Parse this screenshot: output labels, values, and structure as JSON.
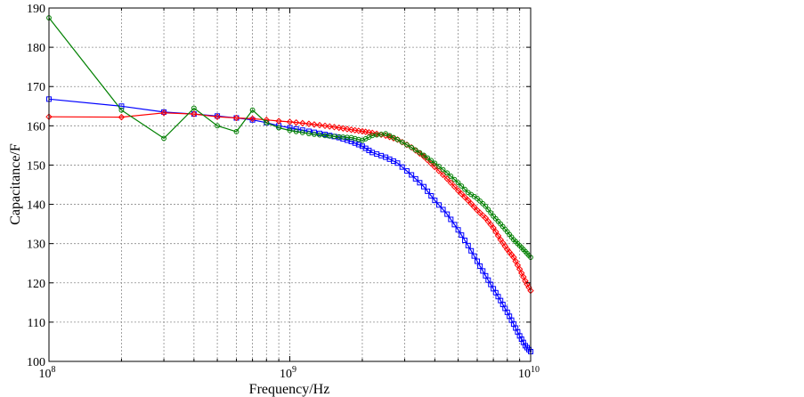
{
  "chart_data": {
    "type": "line",
    "title": "",
    "xlabel": "Frequency/Hz",
    "ylabel": "Capacitance/F",
    "xscale": "log",
    "xlim": [
      100000000,
      10000000000
    ],
    "ylim": [
      100,
      190
    ],
    "grid": true,
    "legend": "none",
    "x_ticks": [
      {
        "value": 100000000,
        "base": "10",
        "exp": "8"
      },
      {
        "value": 1000000000,
        "base": "10",
        "exp": "9"
      },
      {
        "value": 10000000000,
        "base": "10",
        "exp": "10"
      }
    ],
    "y_ticks": [
      100,
      110,
      120,
      130,
      140,
      150,
      160,
      170,
      180,
      190
    ],
    "series": [
      {
        "color": "#0000ff",
        "marker": "square",
        "x": [
          100000000.0,
          200000000.0,
          300000000.0,
          400000000.0,
          500000000.0,
          600000000.0,
          700000000.0,
          800000000.0,
          900000000.0,
          1000000000.0,
          1200000000.0,
          1400000000.0,
          1600000000.0,
          1800000000.0,
          2000000000.0,
          2200000000.0,
          2500000000.0,
          2800000000.0,
          3200000000.0,
          3600000000.0,
          4000000000.0,
          4500000000.0,
          5000000000.0,
          5500000000.0,
          6000000000.0,
          6500000000.0,
          7000000000.0,
          7500000000.0,
          8000000000.0,
          8500000000.0,
          9000000000.0,
          9500000000.0,
          10000000000.0
        ],
        "values": [
          166.8,
          165.0,
          163.5,
          163.0,
          162.5,
          162.0,
          161.5,
          160.8,
          160.0,
          159.5,
          158.6,
          157.8,
          157.0,
          156.0,
          154.8,
          153.2,
          152.0,
          150.5,
          147.5,
          144.5,
          141.0,
          137.5,
          133.5,
          129.5,
          125.5,
          121.8,
          118.5,
          115.5,
          112.5,
          109.5,
          106.5,
          104.0,
          102.5
        ]
      },
      {
        "color": "#ff0000",
        "marker": "diamond",
        "x": [
          100000000.0,
          200000000.0,
          300000000.0,
          400000000.0,
          500000000.0,
          600000000.0,
          700000000.0,
          800000000.0,
          900000000.0,
          1000000000.0,
          1200000000.0,
          1400000000.0,
          1600000000.0,
          1800000000.0,
          2000000000.0,
          2200000000.0,
          2500000000.0,
          2800000000.0,
          3200000000.0,
          3600000000.0,
          4000000000.0,
          4500000000.0,
          5000000000.0,
          5500000000.0,
          6000000000.0,
          6500000000.0,
          7000000000.0,
          7500000000.0,
          8000000000.0,
          8500000000.0,
          9000000000.0,
          9500000000.0,
          10000000000.0
        ],
        "values": [
          162.3,
          162.2,
          163.3,
          163.0,
          162.3,
          162.0,
          161.8,
          161.5,
          161.2,
          161.0,
          160.5,
          160.0,
          159.5,
          159.0,
          158.6,
          158.2,
          157.5,
          156.5,
          154.5,
          152.2,
          149.5,
          146.5,
          143.5,
          141.0,
          138.5,
          136.5,
          134.0,
          131.0,
          128.5,
          126.5,
          123.5,
          120.5,
          118.0
        ]
      },
      {
        "color": "#008000",
        "marker": "circle",
        "x": [
          100000000.0,
          200000000.0,
          300000000.0,
          400000000.0,
          500000000.0,
          600000000.0,
          700000000.0,
          800000000.0,
          900000000.0,
          1000000000.0,
          1200000000.0,
          1400000000.0,
          1600000000.0,
          1800000000.0,
          2000000000.0,
          2200000000.0,
          2500000000.0,
          2800000000.0,
          3200000000.0,
          3600000000.0,
          4000000000.0,
          4500000000.0,
          5000000000.0,
          5500000000.0,
          6000000000.0,
          6500000000.0,
          7000000000.0,
          7500000000.0,
          8000000000.0,
          8500000000.0,
          9000000000.0,
          9500000000.0,
          10000000000.0
        ],
        "values": [
          187.5,
          164.0,
          156.8,
          164.5,
          160.0,
          158.5,
          164.0,
          160.8,
          159.5,
          158.8,
          158.0,
          157.5,
          157.2,
          157.0,
          156.3,
          157.5,
          158.0,
          156.5,
          154.5,
          152.5,
          150.5,
          148.0,
          145.5,
          143.0,
          141.5,
          139.5,
          137.0,
          135.0,
          133.0,
          131.0,
          129.5,
          128.0,
          126.5
        ]
      }
    ]
  }
}
